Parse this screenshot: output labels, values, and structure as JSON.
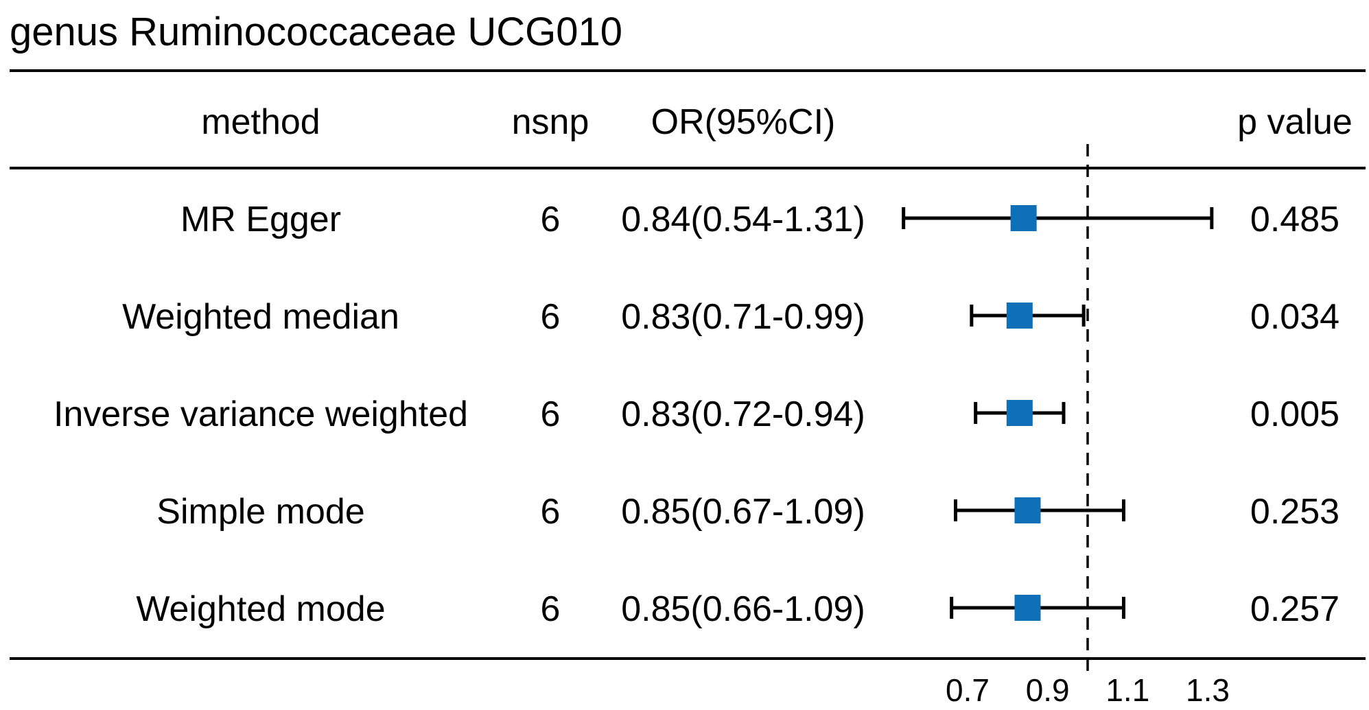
{
  "chart_data": {
    "type": "forest",
    "title": "genus Ruminococcaceae UCG010",
    "columns": {
      "method": "method",
      "nsnp": "nsnp",
      "or_ci": "OR(95%CI)",
      "p_value": "p value"
    },
    "rows": [
      {
        "method": "MR Egger",
        "nsnp": "6",
        "or_ci": "0.84(0.54-1.31)",
        "or": 0.84,
        "lower": 0.54,
        "upper": 1.31,
        "p_value": "0.485"
      },
      {
        "method": "Weighted median",
        "nsnp": "6",
        "or_ci": "0.83(0.71-0.99)",
        "or": 0.83,
        "lower": 0.71,
        "upper": 0.99,
        "p_value": "0.034"
      },
      {
        "method": "Inverse variance weighted",
        "nsnp": "6",
        "or_ci": "0.83(0.72-0.94)",
        "or": 0.83,
        "lower": 0.72,
        "upper": 0.94,
        "p_value": "0.005"
      },
      {
        "method": "Simple mode",
        "nsnp": "6",
        "or_ci": "0.85(0.67-1.09)",
        "or": 0.85,
        "lower": 0.67,
        "upper": 1.09,
        "p_value": "0.253"
      },
      {
        "method": "Weighted mode",
        "nsnp": "6",
        "or_ci": "0.85(0.66-1.09)",
        "or": 0.85,
        "lower": 0.66,
        "upper": 1.09,
        "p_value": "0.257"
      }
    ],
    "x_ticks": [
      "0.7",
      "0.9",
      "1.1",
      "1.3"
    ],
    "reference_line": 1.0,
    "marker_color": "#0f70b8"
  }
}
